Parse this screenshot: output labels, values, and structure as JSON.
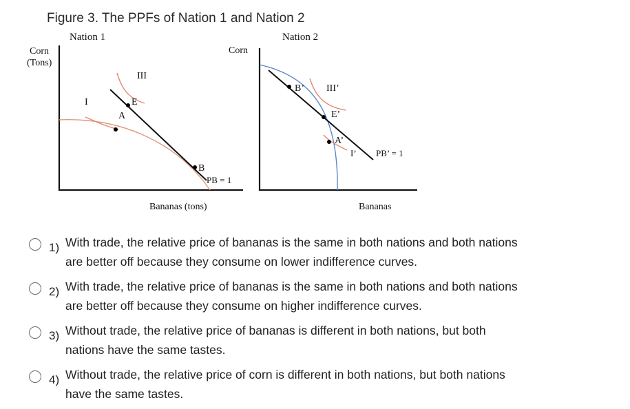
{
  "figure": {
    "title": "Figure 3. The PPFs of Nation 1 and Nation 2",
    "nation1": {
      "title": "Nation 1",
      "y_label_line1": "Corn",
      "y_label_line2": "(Tons)",
      "x_label": "Bananas (tons)",
      "labels": {
        "I": "I",
        "III": "III",
        "E": "E",
        "A": "A",
        "B": "B",
        "PB": "PB = 1"
      }
    },
    "nation2": {
      "title": "Nation 2",
      "y_label": "Corn",
      "x_label": "Bananas",
      "labels": {
        "B": "B’",
        "III": "III’",
        "E": "E’",
        "A": "A’",
        "I": "I’",
        "PB": "PB’ = 1"
      }
    },
    "colors": {
      "ppf": "#e09a7a",
      "indifference": "#e3886a",
      "ppf2": "#5b86c9",
      "axes": "#111111"
    }
  },
  "question": {
    "options": [
      {
        "number": "1)",
        "text": "With trade, the relative price of bananas is the same in both nations and both nations are better off because they consume on lower indifference curves."
      },
      {
        "number": "2)",
        "text": "With trade, the relative price of bananas is the same in both nations and both nations are better off because they consume on higher indifference curves."
      },
      {
        "number": "3)",
        "text": "Without trade, the relative price of bananas is different in both nations, but both nations have the same tastes."
      },
      {
        "number": "4)",
        "text": "Without trade, the relative price of corn is different in both nations, but both nations have the same tastes."
      }
    ]
  }
}
